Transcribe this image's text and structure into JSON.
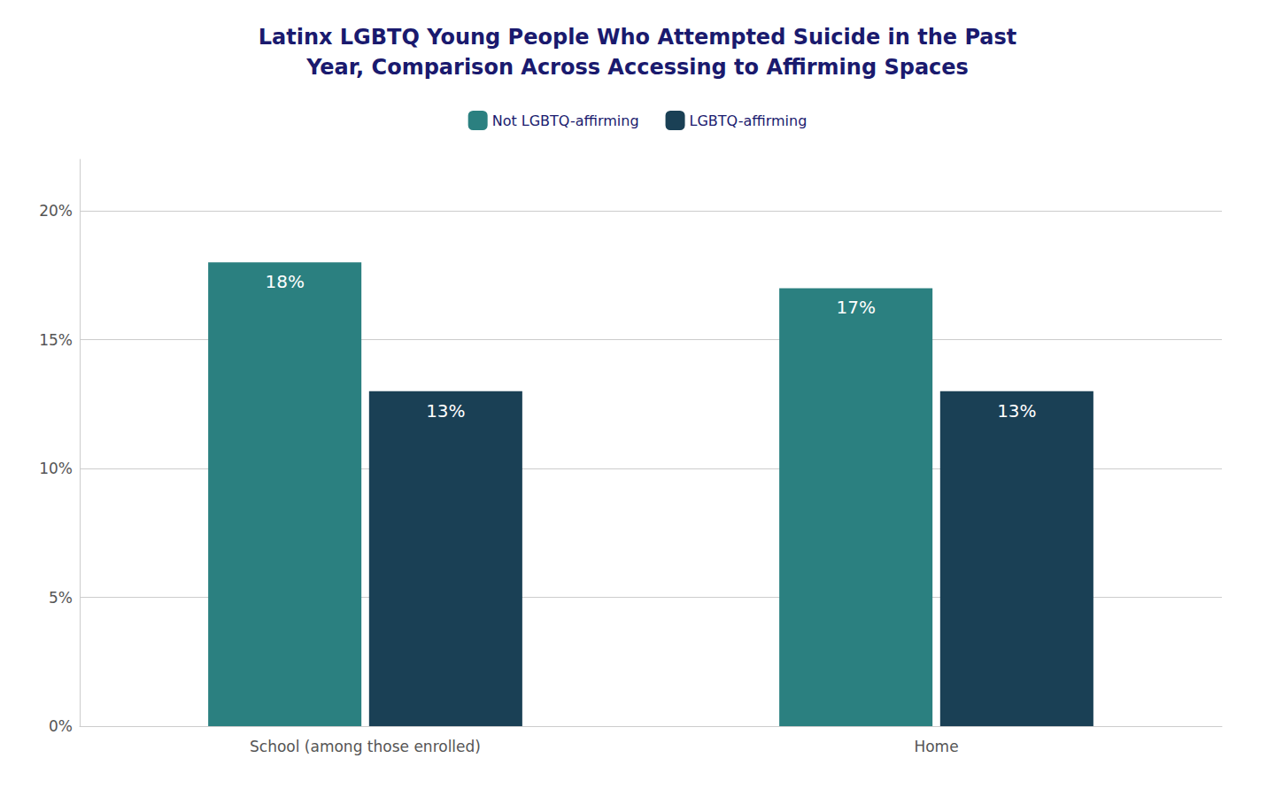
{
  "chart_data": {
    "type": "bar",
    "title": "Latinx LGBTQ Young People Who Attempted Suicide in the Past\nYear, Comparison Across Accessing to Affirming Spaces",
    "categories": [
      "School (among those enrolled)",
      "Home"
    ],
    "series": [
      {
        "name": "Not LGBTQ-affirming",
        "color": "#2b8080",
        "values": [
          18,
          17
        ],
        "value_labels": [
          "18%",
          "17%"
        ]
      },
      {
        "name": "LGBTQ-affirming",
        "color": "#1a4055",
        "values": [
          13,
          13
        ],
        "value_labels": [
          "13%",
          "13%"
        ]
      }
    ],
    "ylim": [
      0,
      22
    ],
    "yticks": [
      {
        "value": 0,
        "label": "0%"
      },
      {
        "value": 5,
        "label": "5%"
      },
      {
        "value": 10,
        "label": "10%"
      },
      {
        "value": 15,
        "label": "15%"
      },
      {
        "value": 20,
        "label": "20%"
      }
    ],
    "grid": true,
    "legend": "top",
    "data_labels": true
  }
}
